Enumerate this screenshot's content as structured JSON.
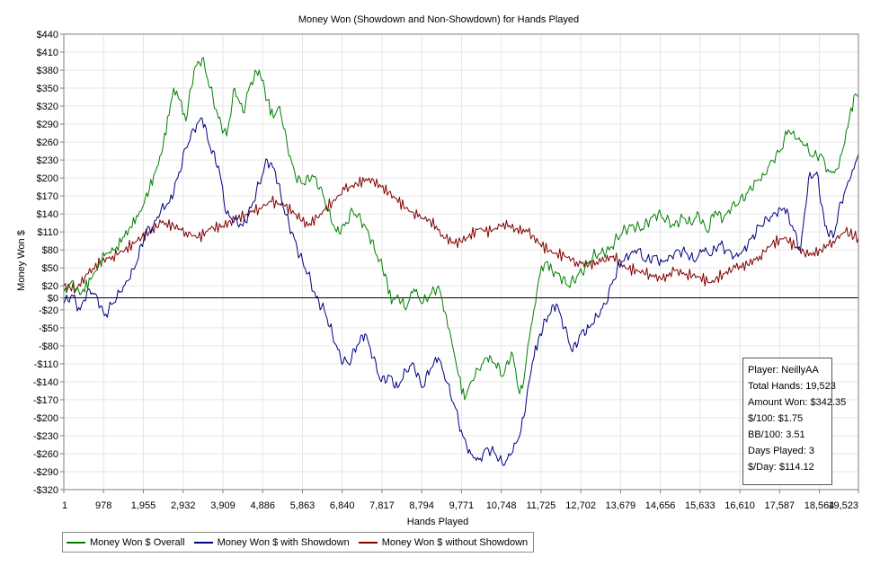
{
  "chart_data": {
    "type": "line",
    "title": "Money Won (Showdown and Non-Showdown) for Hands Played",
    "xlabel": "Hands Played",
    "ylabel": "Money Won $",
    "xlim": [
      1,
      19523
    ],
    "ylim": [
      -320,
      440
    ],
    "x_ticks": [
      1,
      978,
      1955,
      2932,
      3909,
      4886,
      5863,
      6840,
      7817,
      8794,
      9771,
      10748,
      11725,
      12702,
      13679,
      14656,
      15633,
      16610,
      17587,
      18564,
      19523
    ],
    "x_tick_labels": [
      "1",
      "978",
      "1,955",
      "2,932",
      "3,909",
      "4,886",
      "5,863",
      "6,840",
      "7,817",
      "8,794",
      "9,771",
      "10,748",
      "11,725",
      "12,702",
      "13,679",
      "14,656",
      "15,633",
      "16,610",
      "17,587",
      "18,564",
      "19,523"
    ],
    "y_ticks": [
      440,
      410,
      380,
      350,
      320,
      290,
      260,
      230,
      200,
      170,
      140,
      110,
      80,
      50,
      20,
      0,
      -20,
      -50,
      -80,
      -110,
      -140,
      -170,
      -200,
      -230,
      -260,
      -290,
      -320
    ],
    "y_tick_labels": [
      "$440",
      "$410",
      "$380",
      "$350",
      "$320",
      "$290",
      "$260",
      "$230",
      "$200",
      "$170",
      "$140",
      "$110",
      "$80",
      "$50",
      "$20",
      "$0",
      "-$20",
      "-$50",
      "-$80",
      "-$110",
      "-$140",
      "-$170",
      "-$200",
      "-$230",
      "-$260",
      "-$290",
      "-$320"
    ],
    "grid": true,
    "legend_position": "bottom-left",
    "series": [
      {
        "name": "Money Won $ Overall",
        "color": "#008000",
        "x": [
          1,
          200,
          400,
          700,
          1000,
          1300,
          1600,
          1900,
          2100,
          2400,
          2700,
          2850,
          3000,
          3200,
          3400,
          3600,
          3800,
          4000,
          4200,
          4400,
          4600,
          4800,
          5000,
          5150,
          5300,
          5500,
          5700,
          5900,
          6100,
          6300,
          6500,
          6700,
          6900,
          7100,
          7300,
          7500,
          7700,
          7900,
          8050,
          8200,
          8400,
          8600,
          8800,
          9000,
          9200,
          9400,
          9550,
          9700,
          9850,
          10000,
          10200,
          10400,
          10600,
          10800,
          11000,
          11100,
          11200,
          11300,
          11400,
          11550,
          11700,
          11850,
          12000,
          12200,
          12400,
          12600,
          12800,
          13000,
          13200,
          13400,
          13600,
          13800,
          14000,
          14200,
          14400,
          14600,
          14800,
          15000,
          15200,
          15400,
          15600,
          15800,
          16000,
          16200,
          16400,
          16600,
          16800,
          17000,
          17200,
          17400,
          17600,
          17800,
          18000,
          18200,
          18400,
          18600,
          18800,
          19000,
          19150,
          19300,
          19450,
          19523
        ],
        "values": [
          10,
          28,
          5,
          35,
          70,
          85,
          115,
          145,
          180,
          240,
          350,
          330,
          295,
          380,
          400,
          350,
          300,
          270,
          350,
          310,
          360,
          380,
          330,
          300,
          320,
          250,
          200,
          190,
          205,
          185,
          145,
          110,
          120,
          145,
          130,
          105,
          70,
          40,
          -10,
          5,
          -20,
          15,
          -10,
          5,
          20,
          -30,
          -80,
          -130,
          -170,
          -140,
          -120,
          -100,
          -110,
          -130,
          -90,
          -120,
          -160,
          -140,
          -80,
          -20,
          40,
          60,
          45,
          35,
          20,
          35,
          50,
          70,
          75,
          80,
          100,
          115,
          120,
          115,
          130,
          140,
          130,
          120,
          135,
          125,
          140,
          110,
          145,
          130,
          150,
          160,
          175,
          195,
          205,
          230,
          245,
          280,
          265,
          255,
          235,
          240,
          210,
          215,
          250,
          300,
          340,
          335
        ]
      },
      {
        "name": "Money Won $ with Showdown",
        "color": "#000080",
        "x": [
          1,
          200,
          400,
          600,
          800,
          1000,
          1200,
          1400,
          1600,
          1800,
          2000,
          2200,
          2400,
          2600,
          2800,
          3000,
          3200,
          3400,
          3600,
          3800,
          4000,
          4200,
          4400,
          4600,
          4800,
          5000,
          5200,
          5400,
          5600,
          5800,
          6000,
          6200,
          6400,
          6600,
          6800,
          7000,
          7200,
          7400,
          7600,
          7800,
          8000,
          8200,
          8400,
          8600,
          8800,
          9000,
          9200,
          9400,
          9600,
          9800,
          10000,
          10200,
          10400,
          10600,
          10800,
          11000,
          11200,
          11300,
          11400,
          11550,
          11700,
          11900,
          12100,
          12300,
          12500,
          12700,
          12900,
          13100,
          13300,
          13500,
          13700,
          13900,
          14100,
          14300,
          14500,
          14700,
          14900,
          15100,
          15300,
          15500,
          15700,
          15900,
          16100,
          16300,
          16500,
          16700,
          16900,
          17100,
          17300,
          17500,
          17700,
          17900,
          18100,
          18300,
          18500,
          18700,
          18900,
          19100,
          19300,
          19523
        ],
        "values": [
          -10,
          5,
          -20,
          15,
          5,
          -30,
          -10,
          10,
          30,
          60,
          110,
          120,
          150,
          160,
          200,
          250,
          280,
          300,
          250,
          220,
          140,
          130,
          120,
          150,
          190,
          230,
          210,
          150,
          110,
          70,
          40,
          0,
          -20,
          -60,
          -100,
          -110,
          -80,
          -60,
          -100,
          -140,
          -130,
          -150,
          -120,
          -110,
          -150,
          -120,
          -100,
          -140,
          -180,
          -230,
          -260,
          -270,
          -250,
          -260,
          -280,
          -260,
          -230,
          -200,
          -150,
          -100,
          -60,
          -30,
          -10,
          -50,
          -90,
          -60,
          -50,
          -30,
          -10,
          30,
          60,
          70,
          80,
          60,
          70,
          60,
          70,
          80,
          75,
          60,
          80,
          70,
          90,
          80,
          70,
          80,
          100,
          120,
          130,
          140,
          150,
          120,
          80,
          200,
          210,
          120,
          100,
          160,
          195,
          240
        ]
      },
      {
        "name": "Money Won $ without Showdown",
        "color": "#800000",
        "x": [
          1,
          300,
          600,
          900,
          1200,
          1500,
          1800,
          2100,
          2400,
          2700,
          3000,
          3300,
          3600,
          3900,
          4200,
          4500,
          4800,
          5100,
          5400,
          5700,
          6000,
          6300,
          6600,
          6900,
          7200,
          7500,
          7800,
          8100,
          8400,
          8700,
          9000,
          9300,
          9600,
          9900,
          10200,
          10500,
          10800,
          11100,
          11400,
          11700,
          12000,
          12300,
          12600,
          12900,
          13200,
          13500,
          13800,
          14100,
          14400,
          14700,
          15000,
          15300,
          15600,
          15900,
          16200,
          16500,
          16800,
          17100,
          17400,
          17700,
          18000,
          18300,
          18600,
          18900,
          19200,
          19523
        ],
        "values": [
          20,
          15,
          40,
          60,
          70,
          80,
          95,
          110,
          125,
          120,
          110,
          100,
          115,
          120,
          130,
          140,
          150,
          160,
          155,
          140,
          120,
          140,
          160,
          180,
          190,
          200,
          185,
          170,
          150,
          135,
          130,
          105,
          90,
          100,
          115,
          110,
          125,
          115,
          110,
          90,
          75,
          70,
          60,
          55,
          60,
          70,
          50,
          45,
          40,
          30,
          45,
          40,
          35,
          25,
          40,
          50,
          55,
          70,
          90,
          100,
          85,
          70,
          80,
          95,
          110,
          100
        ]
      }
    ]
  },
  "stats_box": {
    "player": "Player: NeillyAA",
    "total_hands": "Total Hands: 19,523",
    "amount_won": "Amount Won: $342.35",
    "per_100": "$/100: $1.75",
    "bb_per_100": "BB/100: 3.51",
    "days_played": "Days Played: 3",
    "per_day": "$/Day: $114.12"
  }
}
